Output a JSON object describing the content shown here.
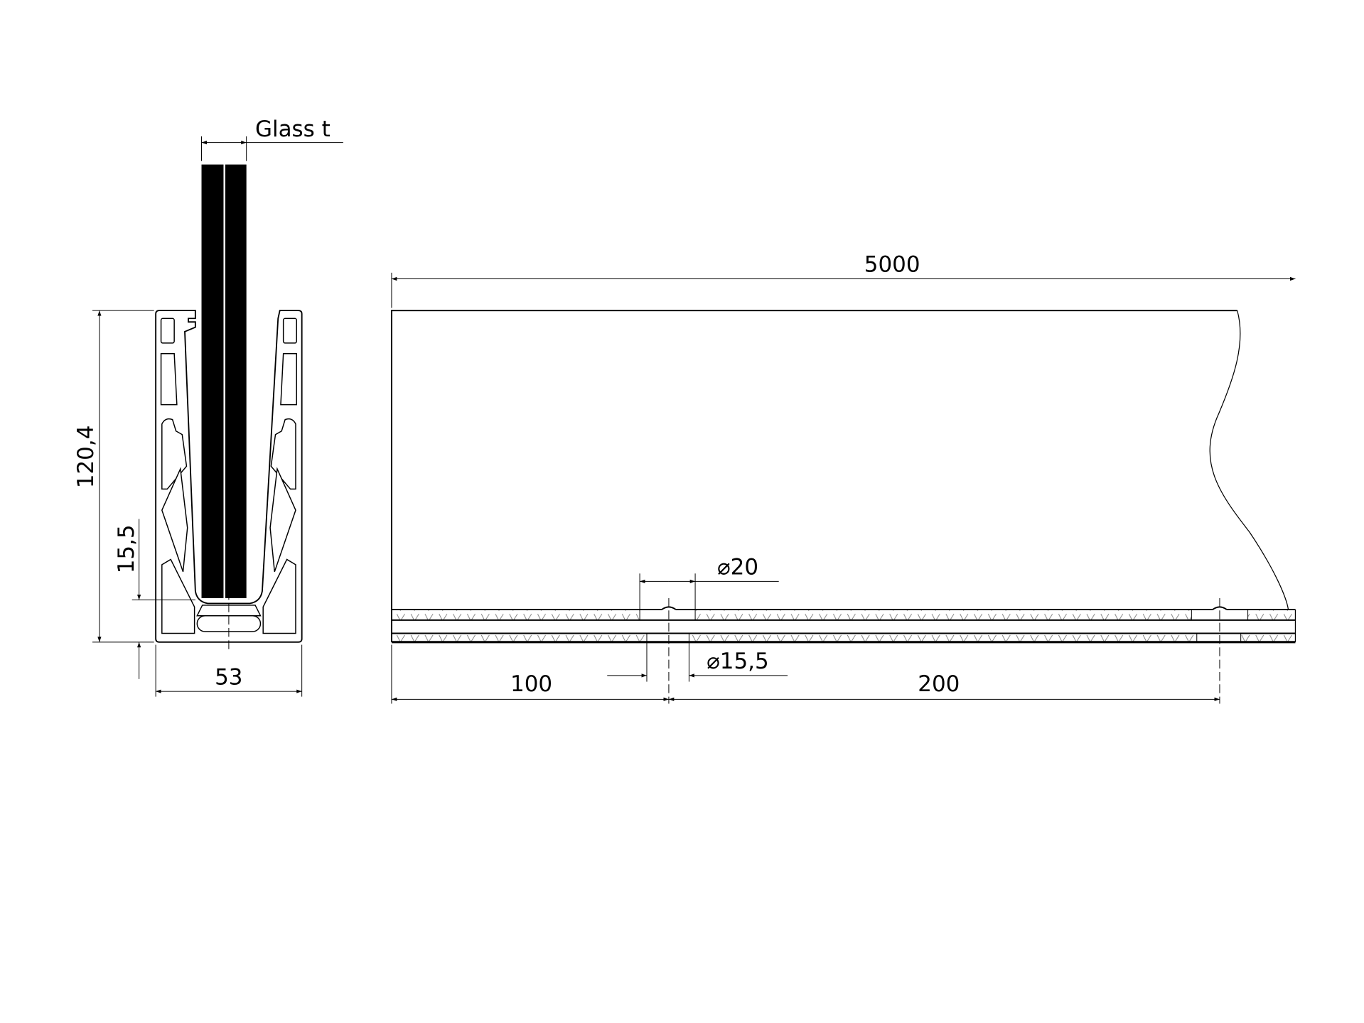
{
  "section_view": {
    "glass_label": "Glass t",
    "height_dim": "120,4",
    "inset_dim": "15,5",
    "width_dim": "53"
  },
  "side_view": {
    "length_dim": "5000",
    "hole_large_dim": "⌀20",
    "hole_small_dim": "⌀15,5",
    "first_hole_offset_dim": "100",
    "hole_spacing_dim": "200"
  },
  "colors": {
    "line": "#000000",
    "glass": "#000000",
    "background": "#ffffff"
  }
}
